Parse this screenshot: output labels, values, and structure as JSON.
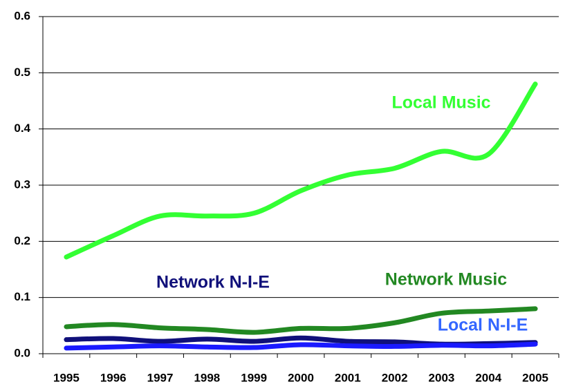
{
  "chart_data": {
    "type": "line",
    "categories": [
      "1995",
      "1996",
      "1997",
      "1998",
      "1999",
      "2000",
      "2001",
      "2002",
      "2003",
      "2004",
      "2005"
    ],
    "series": [
      {
        "name": "Local Music",
        "color": "#33ff33",
        "values": [
          0.172,
          0.21,
          0.245,
          0.245,
          0.25,
          0.29,
          0.318,
          0.33,
          0.36,
          0.355,
          0.48
        ]
      },
      {
        "name": "Network Music",
        "color": "#228822",
        "values": [
          0.048,
          0.052,
          0.046,
          0.043,
          0.038,
          0.045,
          0.045,
          0.055,
          0.072,
          0.076,
          0.08
        ]
      },
      {
        "name": "Network N-I-E",
        "color": "#10107a",
        "values": [
          0.025,
          0.027,
          0.022,
          0.026,
          0.022,
          0.028,
          0.022,
          0.021,
          0.017,
          0.018,
          0.02
        ]
      },
      {
        "name": "Local N-I-E",
        "color": "#1a1aff",
        "values": [
          0.01,
          0.012,
          0.014,
          0.012,
          0.011,
          0.016,
          0.014,
          0.013,
          0.015,
          0.014,
          0.017
        ]
      }
    ],
    "ylim": [
      0,
      0.6
    ],
    "yticks": [
      {
        "value": 0,
        "label": "0.0"
      },
      0.1,
      0.2,
      0.3,
      0.4,
      0.5,
      0.6
    ],
    "grid": true
  }
}
